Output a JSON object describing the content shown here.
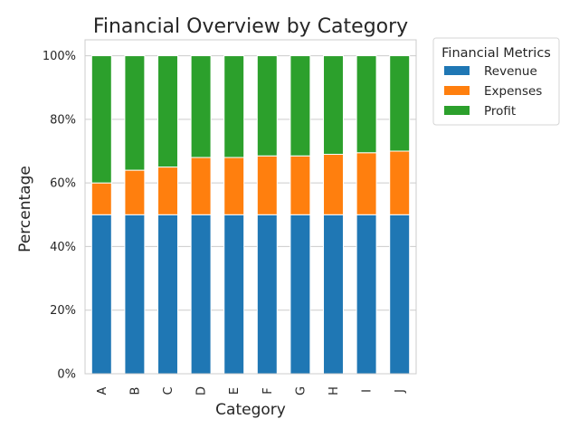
{
  "chart_data": {
    "type": "bar",
    "stacked": true,
    "normalized": true,
    "title": "Financial Overview by Category",
    "xlabel": "Category",
    "ylabel": "Percentage",
    "categories": [
      "A",
      "B",
      "C",
      "D",
      "E",
      "F",
      "G",
      "H",
      "I",
      "J"
    ],
    "y_ticks": [
      "0%",
      "20%",
      "40%",
      "60%",
      "80%",
      "100%"
    ],
    "ylim": [
      0,
      105
    ],
    "grid": true,
    "legend": {
      "title": "Financial Metrics",
      "placement": "outside-top-right"
    },
    "series": [
      {
        "name": "Revenue",
        "color": "#1f77b4",
        "values": [
          50,
          50,
          50,
          50,
          50,
          50,
          50,
          50,
          50,
          50
        ]
      },
      {
        "name": "Expenses",
        "color": "#ff7f0e",
        "values": [
          10,
          14,
          15,
          18,
          18,
          18.5,
          18.5,
          19,
          19.5,
          20
        ]
      },
      {
        "name": "Profit",
        "color": "#2ca02c",
        "values": [
          40,
          36,
          35,
          32,
          32,
          31.5,
          31.5,
          31,
          30.5,
          30
        ]
      }
    ]
  }
}
